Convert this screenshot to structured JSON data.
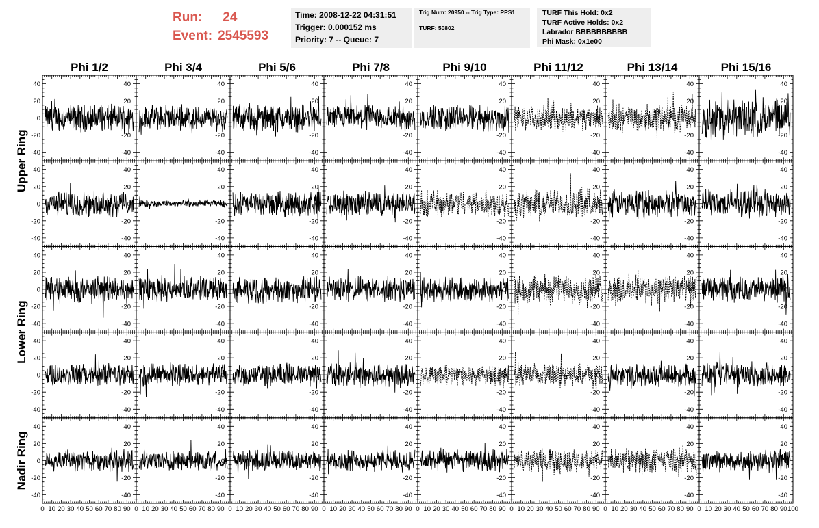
{
  "header": {
    "run_label": "Run:",
    "run_value": "24",
    "event_label": "Event:",
    "event_value": "2545593",
    "run_color": "#d9574f"
  },
  "info_box_1": {
    "time": "Time: 2008-12-22 04:31:51",
    "trigger": "Trigger: 0.000152 ms",
    "priority": "Priority: 7 -- Queue: 7"
  },
  "info_box_2": {
    "trig": "Trig Num: 20950 -- Trig Type: PPS1",
    "turf": "TURF: 50802"
  },
  "info_box_3": {
    "this_hold": "TURF This Hold: 0x2",
    "active_holds": "TURF Active Holds: 0x2",
    "labrador": "Labrador BBBBBBBBBB",
    "phi_mask": "Phi Mask: 0x1e00"
  },
  "chart_data": {
    "type": "line",
    "columns": [
      "Phi 1/2",
      "Phi 3/4",
      "Phi 5/6",
      "Phi 7/8",
      "Phi 9/10",
      "Phi 11/12",
      "Phi 13/14",
      "Phi 15/16"
    ],
    "rings": [
      "Upper Ring",
      "Lower Ring",
      "Nadir Ring"
    ],
    "rows": 5,
    "row_ring_map": [
      "Upper Ring",
      "Upper Ring",
      "Lower Ring",
      "Lower Ring",
      "Nadir Ring"
    ],
    "xlim": [
      0,
      100
    ],
    "ylim": [
      -50,
      50
    ],
    "y_ticks": [
      -40,
      -20,
      0,
      20,
      40
    ],
    "x_tick_labels": [
      "0",
      "10",
      "20",
      "30",
      "40",
      "50",
      "60",
      "70",
      "80",
      "90",
      "100"
    ],
    "grid": false,
    "trace_amplitude": [
      [
        12,
        11,
        12,
        11,
        12,
        11,
        12,
        18
      ],
      [
        11,
        3,
        11,
        11,
        12,
        13,
        12,
        12
      ],
      [
        12,
        11,
        12,
        11,
        11,
        13,
        13,
        11
      ],
      [
        10,
        10,
        10,
        11,
        9,
        10,
        10,
        11
      ],
      [
        10,
        9,
        9,
        9,
        10,
        10,
        11,
        10
      ]
    ],
    "dashed": [
      [
        false,
        false,
        false,
        false,
        false,
        true,
        true,
        false
      ],
      [
        false,
        false,
        false,
        false,
        true,
        true,
        false,
        false
      ],
      [
        false,
        false,
        false,
        false,
        false,
        true,
        true,
        false
      ],
      [
        false,
        false,
        false,
        false,
        true,
        true,
        false,
        false
      ],
      [
        false,
        false,
        false,
        false,
        false,
        true,
        true,
        false
      ]
    ]
  }
}
